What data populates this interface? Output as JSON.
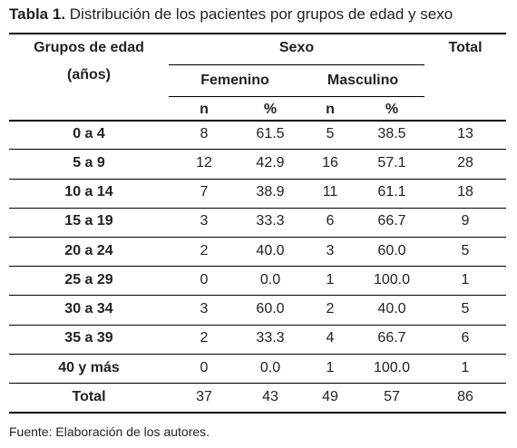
{
  "caption": {
    "label": "Tabla 1.",
    "text": " Distribución de los pacientes por grupos de edad y sexo"
  },
  "header": {
    "group_line1": "Grupos de edad",
    "group_line2": "(años)",
    "sexo": "Sexo",
    "total": "Total",
    "femenino": "Femenino",
    "masculino": "Masculino",
    "n": "n",
    "pct": "%"
  },
  "rows": [
    {
      "label": "0 a 4",
      "fn": "8",
      "fp": "61.5",
      "mn": "5",
      "mp": "38.5",
      "total": "13"
    },
    {
      "label": "5 a 9",
      "fn": "12",
      "fp": "42.9",
      "mn": "16",
      "mp": "57.1",
      "total": "28"
    },
    {
      "label": "10 a 14",
      "fn": "7",
      "fp": "38.9",
      "mn": "11",
      "mp": "61.1",
      "total": "18"
    },
    {
      "label": "15 a 19",
      "fn": "3",
      "fp": "33.3",
      "mn": "6",
      "mp": "66.7",
      "total": "9"
    },
    {
      "label": "20 a 24",
      "fn": "2",
      "fp": "40.0",
      "mn": "3",
      "mp": "60.0",
      "total": "5"
    },
    {
      "label": "25 a 29",
      "fn": "0",
      "fp": "0.0",
      "mn": "1",
      "mp": "100.0",
      "total": "1"
    },
    {
      "label": "30 a 34",
      "fn": "3",
      "fp": "60.0",
      "mn": "2",
      "mp": "40.0",
      "total": "5"
    },
    {
      "label": "35 a 39",
      "fn": "2",
      "fp": "33.3",
      "mn": "4",
      "mp": "66.7",
      "total": "6"
    },
    {
      "label": "40 y más",
      "fn": "0",
      "fp": "0.0",
      "mn": "1",
      "mp": "100.0",
      "total": "1"
    },
    {
      "label": "Total",
      "fn": "37",
      "fp": "43",
      "mn": "49",
      "mp": "57",
      "total": "86"
    }
  ],
  "footer": "Fuente: Elaboración de los autores."
}
